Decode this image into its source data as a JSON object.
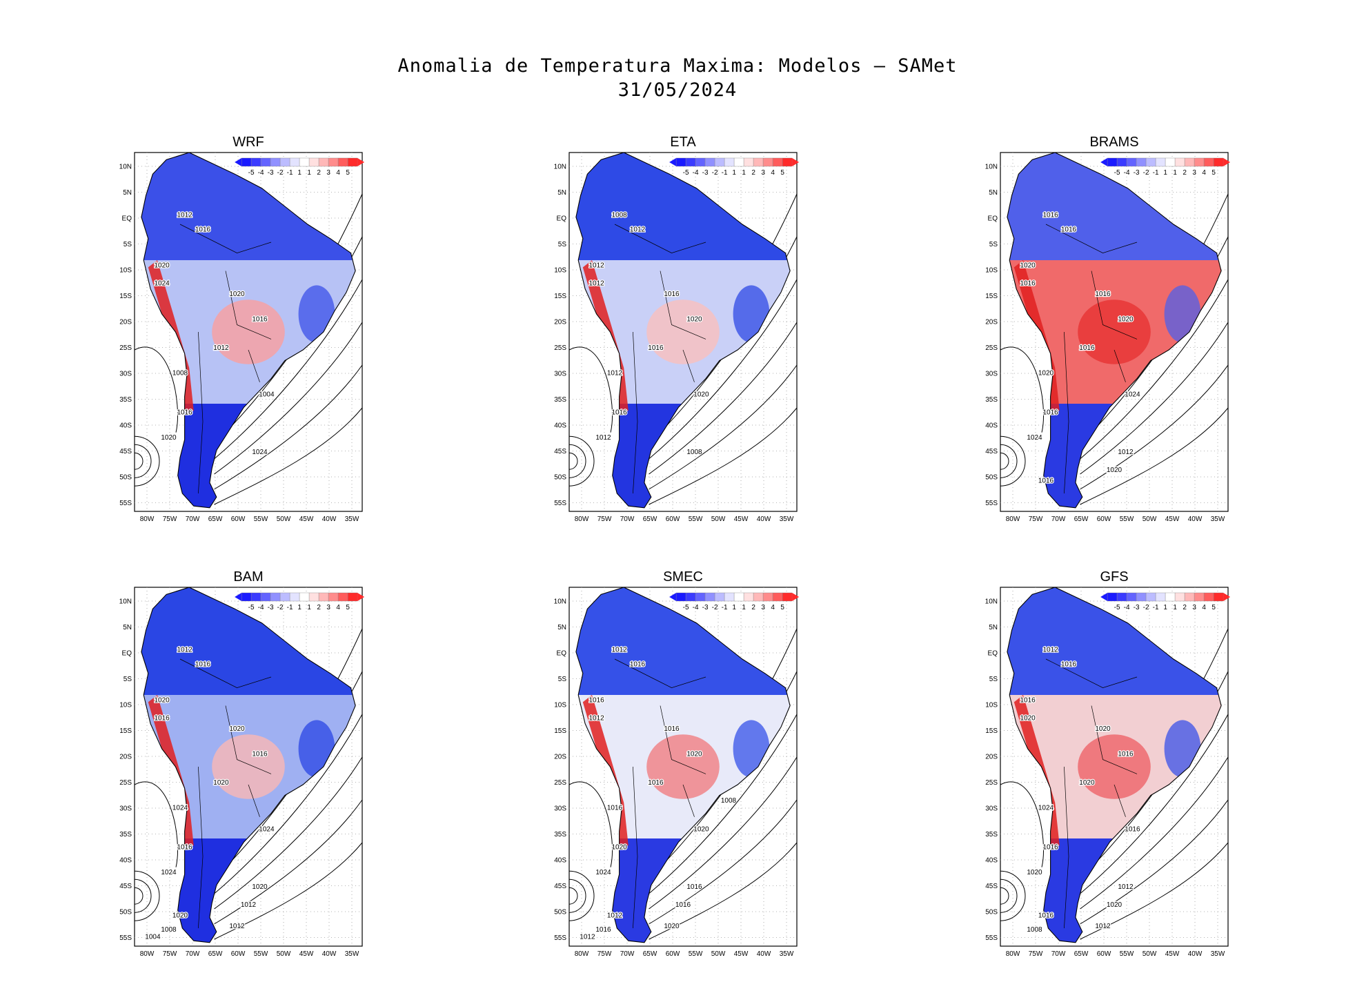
{
  "title": {
    "line1": "Anomalia de Temperatura Maxima: Modelos – SAMet",
    "line2": "31/05/2024"
  },
  "axes": {
    "lat_labels": [
      "10N",
      "5N",
      "EQ",
      "5S",
      "10S",
      "15S",
      "20S",
      "25S",
      "30S",
      "35S",
      "40S",
      "45S",
      "50S",
      "55S"
    ],
    "lon_labels": [
      "80W",
      "75W",
      "70W",
      "65W",
      "60W",
      "55W",
      "50W",
      "45W",
      "40W",
      "35W"
    ]
  },
  "colorbar": {
    "labels": [
      "-5",
      "-4",
      "-3",
      "-2",
      "-1",
      "1",
      "1",
      "2",
      "3",
      "4",
      "5"
    ],
    "colors": [
      "#1a1aff",
      "#3b3bff",
      "#6363ff",
      "#9090ff",
      "#bcbcff",
      "#e3e3ff",
      "#ffffff",
      "#ffe0e0",
      "#ffb8b8",
      "#ff8c8c",
      "#ff5c5c",
      "#ff2a2a"
    ]
  },
  "panels": [
    {
      "name": "WRF",
      "palette": {
        "north": "#3b50e8",
        "center": "#b7c2f5",
        "warm": "#f3a3a8",
        "south": "#1f2fe0",
        "andes": "#e02020"
      },
      "isobars": [
        "1012",
        "1016",
        "1020",
        "1024",
        "1020",
        "1016",
        "1012",
        "1008",
        "1004",
        "1016",
        "1020",
        "1024"
      ]
    },
    {
      "name": "ETA",
      "palette": {
        "north": "#2e4ae6",
        "center": "#c9d0f7",
        "warm": "#f4c1c3",
        "south": "#2335e0",
        "andes": "#e02020"
      },
      "isobars": [
        "1008",
        "1012",
        "1012",
        "1012",
        "1016",
        "1020",
        "1016",
        "1012",
        "1020",
        "1016",
        "1012",
        "1008"
      ]
    },
    {
      "name": "BRAMS",
      "palette": {
        "north": "#5060ea",
        "center": "#f06a6a",
        "warm": "#e83a3a",
        "south": "#2a3ae2",
        "andes": "#e02020"
      },
      "isobars": [
        "1016",
        "1016",
        "1020",
        "1016",
        "1016",
        "1020",
        "1016",
        "1020",
        "1024",
        "1016",
        "1024",
        "1012",
        "1020",
        "1016"
      ]
    },
    {
      "name": "BAM",
      "palette": {
        "north": "#2a46e4",
        "center": "#9fb0f2",
        "warm": "#f0b7bb",
        "south": "#1f2fe0",
        "andes": "#e02020"
      },
      "isobars": [
        "1012",
        "1016",
        "1020",
        "1016",
        "1020",
        "1016",
        "1020",
        "1024",
        "1024",
        "1016",
        "1024",
        "1020",
        "1012",
        "1020",
        "1012",
        "1008",
        "1004"
      ]
    },
    {
      "name": "SMEC",
      "palette": {
        "north": "#3551e8",
        "center": "#e8eaf9",
        "warm": "#f08b8f",
        "south": "#2a3ae2",
        "andes": "#e02020"
      },
      "isobars": [
        "1012",
        "1016",
        "1016",
        "1012",
        "1016",
        "1020",
        "1016",
        "1016",
        "1020",
        "1020",
        "1024",
        "1016",
        "1016",
        "1012",
        "1020",
        "1016",
        "1012",
        "1008"
      ]
    },
    {
      "name": "GFS",
      "palette": {
        "north": "#3a52e8",
        "center": "#f2cfd2",
        "warm": "#ee6f74",
        "south": "#2a3ae2",
        "andes": "#e02020"
      },
      "isobars": [
        "1012",
        "1016",
        "1016",
        "1020",
        "1020",
        "1016",
        "1020",
        "1024",
        "1016",
        "1016",
        "1020",
        "1012",
        "1020",
        "1016",
        "1012",
        "1008"
      ]
    }
  ]
}
